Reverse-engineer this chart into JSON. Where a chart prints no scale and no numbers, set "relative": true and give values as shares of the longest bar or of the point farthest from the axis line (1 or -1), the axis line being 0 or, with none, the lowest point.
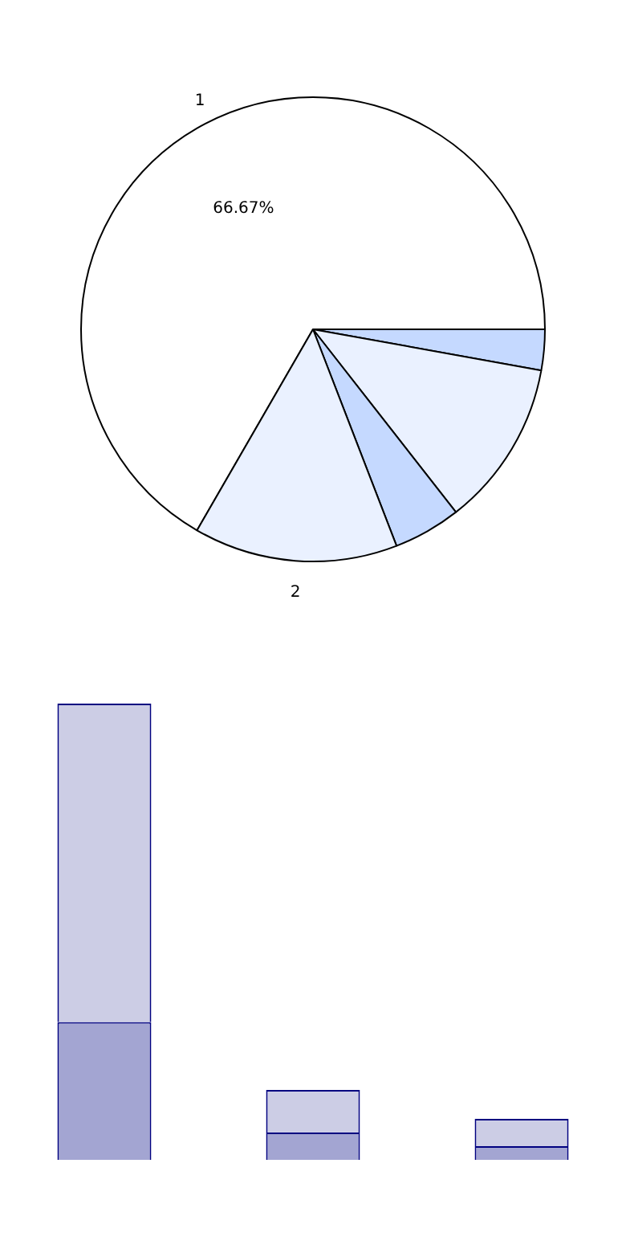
{
  "chart_data": [
    {
      "type": "pie",
      "categories": [
        "1",
        null,
        null,
        null,
        "2"
      ],
      "values": [
        66.67,
        2.83,
        11.6,
        4.7,
        14.2
      ],
      "colors": [
        "#ffffff",
        "#c5d9ff",
        "#eaf1ff",
        "#c5d9ff",
        "#eaf1ff"
      ],
      "value_labels": [
        "66.67%",
        null,
        null,
        null,
        null
      ]
    },
    {
      "type": "bar",
      "stacked": true,
      "relative": true,
      "categories": [
        null,
        null,
        null
      ],
      "series": [
        {
          "color": "#a3a5d2",
          "values": [
            0.302,
            0.06,
            0.03
          ]
        },
        {
          "color": "#cccde5",
          "values": [
            0.698,
            0.093,
            0.06
          ]
        }
      ]
    }
  ]
}
